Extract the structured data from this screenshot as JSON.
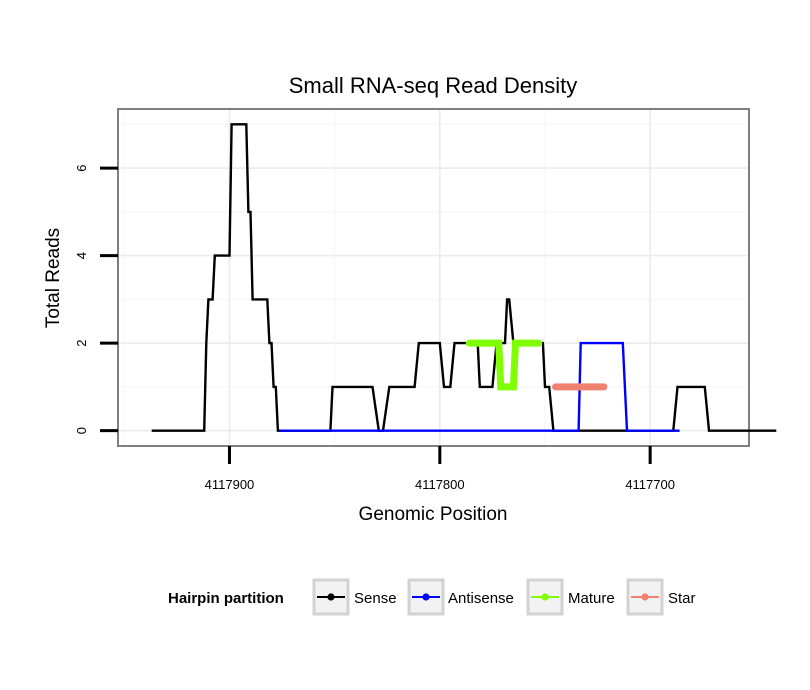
{
  "chart_data": {
    "type": "line",
    "title": "Small RNA-seq Read Density",
    "xlabel": "Genomic Position",
    "ylabel": "Total Reads",
    "xlim": [
      4117653,
      4117953
    ],
    "x_reversed": true,
    "ylim": [
      -0.35,
      7.35
    ],
    "x_ticks": [
      4117900,
      4117800,
      4117700
    ],
    "y_ticks": [
      0,
      2,
      4,
      6
    ],
    "grid": true,
    "legend": {
      "title": "Hairpin partition",
      "position": "bottom",
      "entries": [
        {
          "name": "Sense",
          "color": "#000000"
        },
        {
          "name": "Antisense",
          "color": "#0000ff"
        },
        {
          "name": "Mature",
          "color": "#7fff00"
        },
        {
          "name": "Star",
          "color": "#f08070"
        }
      ]
    },
    "series": [
      {
        "name": "Sense",
        "color": "#000000",
        "points": [
          [
            4117937,
            0
          ],
          [
            4117912,
            0
          ],
          [
            4117911,
            2
          ],
          [
            4117910,
            3
          ],
          [
            4117908,
            3
          ],
          [
            4117907,
            4
          ],
          [
            4117900,
            4
          ],
          [
            4117899,
            7
          ],
          [
            4117892,
            7
          ],
          [
            4117891,
            5
          ],
          [
            4117890,
            5
          ],
          [
            4117889,
            3
          ],
          [
            4117882,
            3
          ],
          [
            4117881,
            2
          ],
          [
            4117880,
            2
          ],
          [
            4117879,
            1
          ],
          [
            4117878,
            1
          ],
          [
            4117877,
            0
          ],
          [
            4117852,
            0
          ],
          [
            4117851,
            1
          ],
          [
            4117832,
            1
          ],
          [
            4117829,
            0
          ],
          [
            4117827,
            0
          ],
          [
            4117824,
            1
          ],
          [
            4117812,
            1
          ],
          [
            4117810,
            2
          ],
          [
            4117800,
            2
          ],
          [
            4117798,
            1
          ],
          [
            4117795,
            1
          ],
          [
            4117793,
            2
          ],
          [
            4117782,
            2
          ],
          [
            4117781,
            1
          ],
          [
            4117775,
            1
          ],
          [
            4117773,
            2
          ],
          [
            4117769,
            2
          ],
          [
            4117768,
            3
          ],
          [
            4117767,
            3
          ],
          [
            4117765,
            2
          ],
          [
            4117751,
            2
          ],
          [
            4117750,
            1
          ],
          [
            4117748,
            1
          ],
          [
            4117746,
            0
          ],
          [
            4117689,
            0
          ],
          [
            4117687,
            1
          ],
          [
            4117674,
            1
          ],
          [
            4117672,
            0
          ],
          [
            4117640,
            0
          ]
        ]
      },
      {
        "name": "Antisense",
        "color": "#0000ff",
        "points": [
          [
            4117876,
            0
          ],
          [
            4117734,
            0
          ],
          [
            4117733,
            2
          ],
          [
            4117713,
            2
          ],
          [
            4117711,
            0
          ],
          [
            4117687,
            0
          ],
          [
            4117686,
            0
          ]
        ]
      },
      {
        "name": "Mature",
        "color": "#7fff00",
        "points": [
          [
            4117786,
            2
          ],
          [
            4117772,
            2
          ],
          [
            4117771,
            1
          ],
          [
            4117765,
            1
          ],
          [
            4117764,
            2
          ],
          [
            4117753,
            2
          ]
        ]
      },
      {
        "name": "Star",
        "color": "#f08070",
        "points": [
          [
            4117745,
            1
          ],
          [
            4117722,
            1
          ]
        ]
      }
    ]
  }
}
